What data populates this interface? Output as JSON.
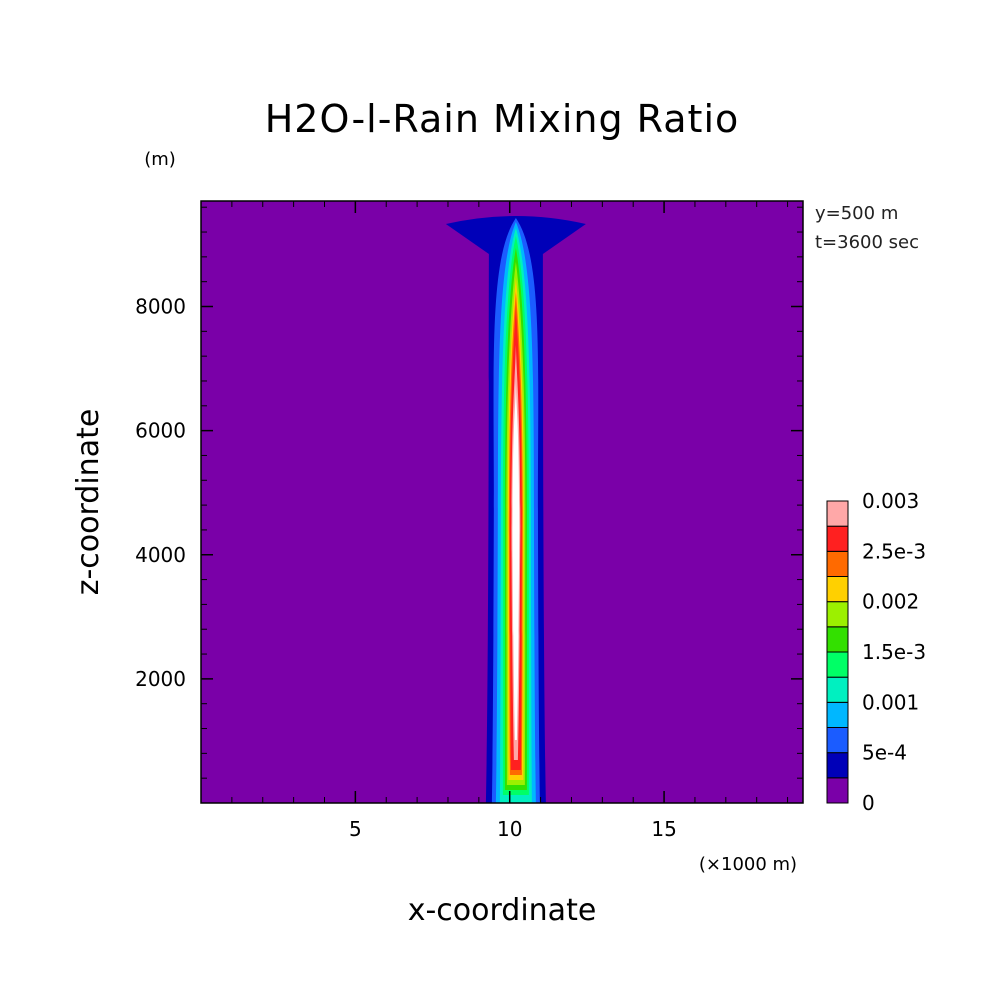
{
  "chart_data": {
    "type": "heatmap",
    "title": "H2O-l-Rain Mixing Ratio",
    "xlabel": "x-coordinate",
    "ylabel": "z-coordinate",
    "x_unit": "(×1000 m)",
    "y_unit": "(m)",
    "xlim": [
      0,
      19.5
    ],
    "ylim": [
      0,
      9700
    ],
    "x_ticks": [
      5,
      10,
      15
    ],
    "y_ticks": [
      2000,
      4000,
      6000,
      8000
    ],
    "annotations": [
      "y=500 m",
      "t=3600 sec"
    ],
    "colorbar": {
      "levels": [
        0,
        0.00025,
        0.0005,
        0.00075,
        0.001,
        0.00125,
        0.0015,
        0.00175,
        0.002,
        0.00225,
        0.0025,
        0.00275,
        0.003
      ],
      "labels": [
        "0",
        "5e-4",
        "0.001",
        "1.5e-3",
        "0.002",
        "2.5e-3",
        "0.003"
      ],
      "colors": [
        "#7a00a8",
        "#0000b8",
        "#1b5cff",
        "#00b7ff",
        "#00f0c0",
        "#00ff66",
        "#33e000",
        "#9cf000",
        "#ffd000",
        "#ff6a00",
        "#ff2020",
        "#ffa8a8"
      ]
    },
    "feature": {
      "description_values": {
        "center_x": 10.2,
        "max_value": 0.003,
        "max_at_z": 5000
      }
    },
    "grid": false
  }
}
